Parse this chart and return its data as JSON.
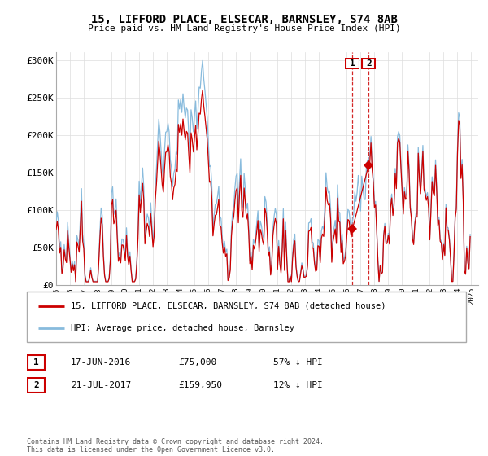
{
  "title": "15, LIFFORD PLACE, ELSECAR, BARNSLEY, S74 8AB",
  "subtitle": "Price paid vs. HM Land Registry's House Price Index (HPI)",
  "legend_label_red": "15, LIFFORD PLACE, ELSECAR, BARNSLEY, S74 8AB (detached house)",
  "legend_label_blue": "HPI: Average price, detached house, Barnsley",
  "t1_date_str": "17-JUN-2016",
  "t1_price": 75000,
  "t1_pct": "57% ↓ HPI",
  "t1_year": 2016.4167,
  "t2_date_str": "21-JUL-2017",
  "t2_price": 159950,
  "t2_pct": "12% ↓ HPI",
  "t2_year": 2017.5417,
  "ylabel_ticks": [
    "£0",
    "£50K",
    "£100K",
    "£150K",
    "£200K",
    "£250K",
    "£300K"
  ],
  "ylabel_vals": [
    0,
    50000,
    100000,
    150000,
    200000,
    250000,
    300000
  ],
  "ylim": [
    0,
    310000
  ],
  "xmin": 1995,
  "xmax": 2025.5,
  "red_color": "#CC0000",
  "blue_color": "#88BBDD",
  "grid_color": "#DDDDDD",
  "footer": "Contains HM Land Registry data © Crown copyright and database right 2024.\nThis data is licensed under the Open Government Licence v3.0."
}
